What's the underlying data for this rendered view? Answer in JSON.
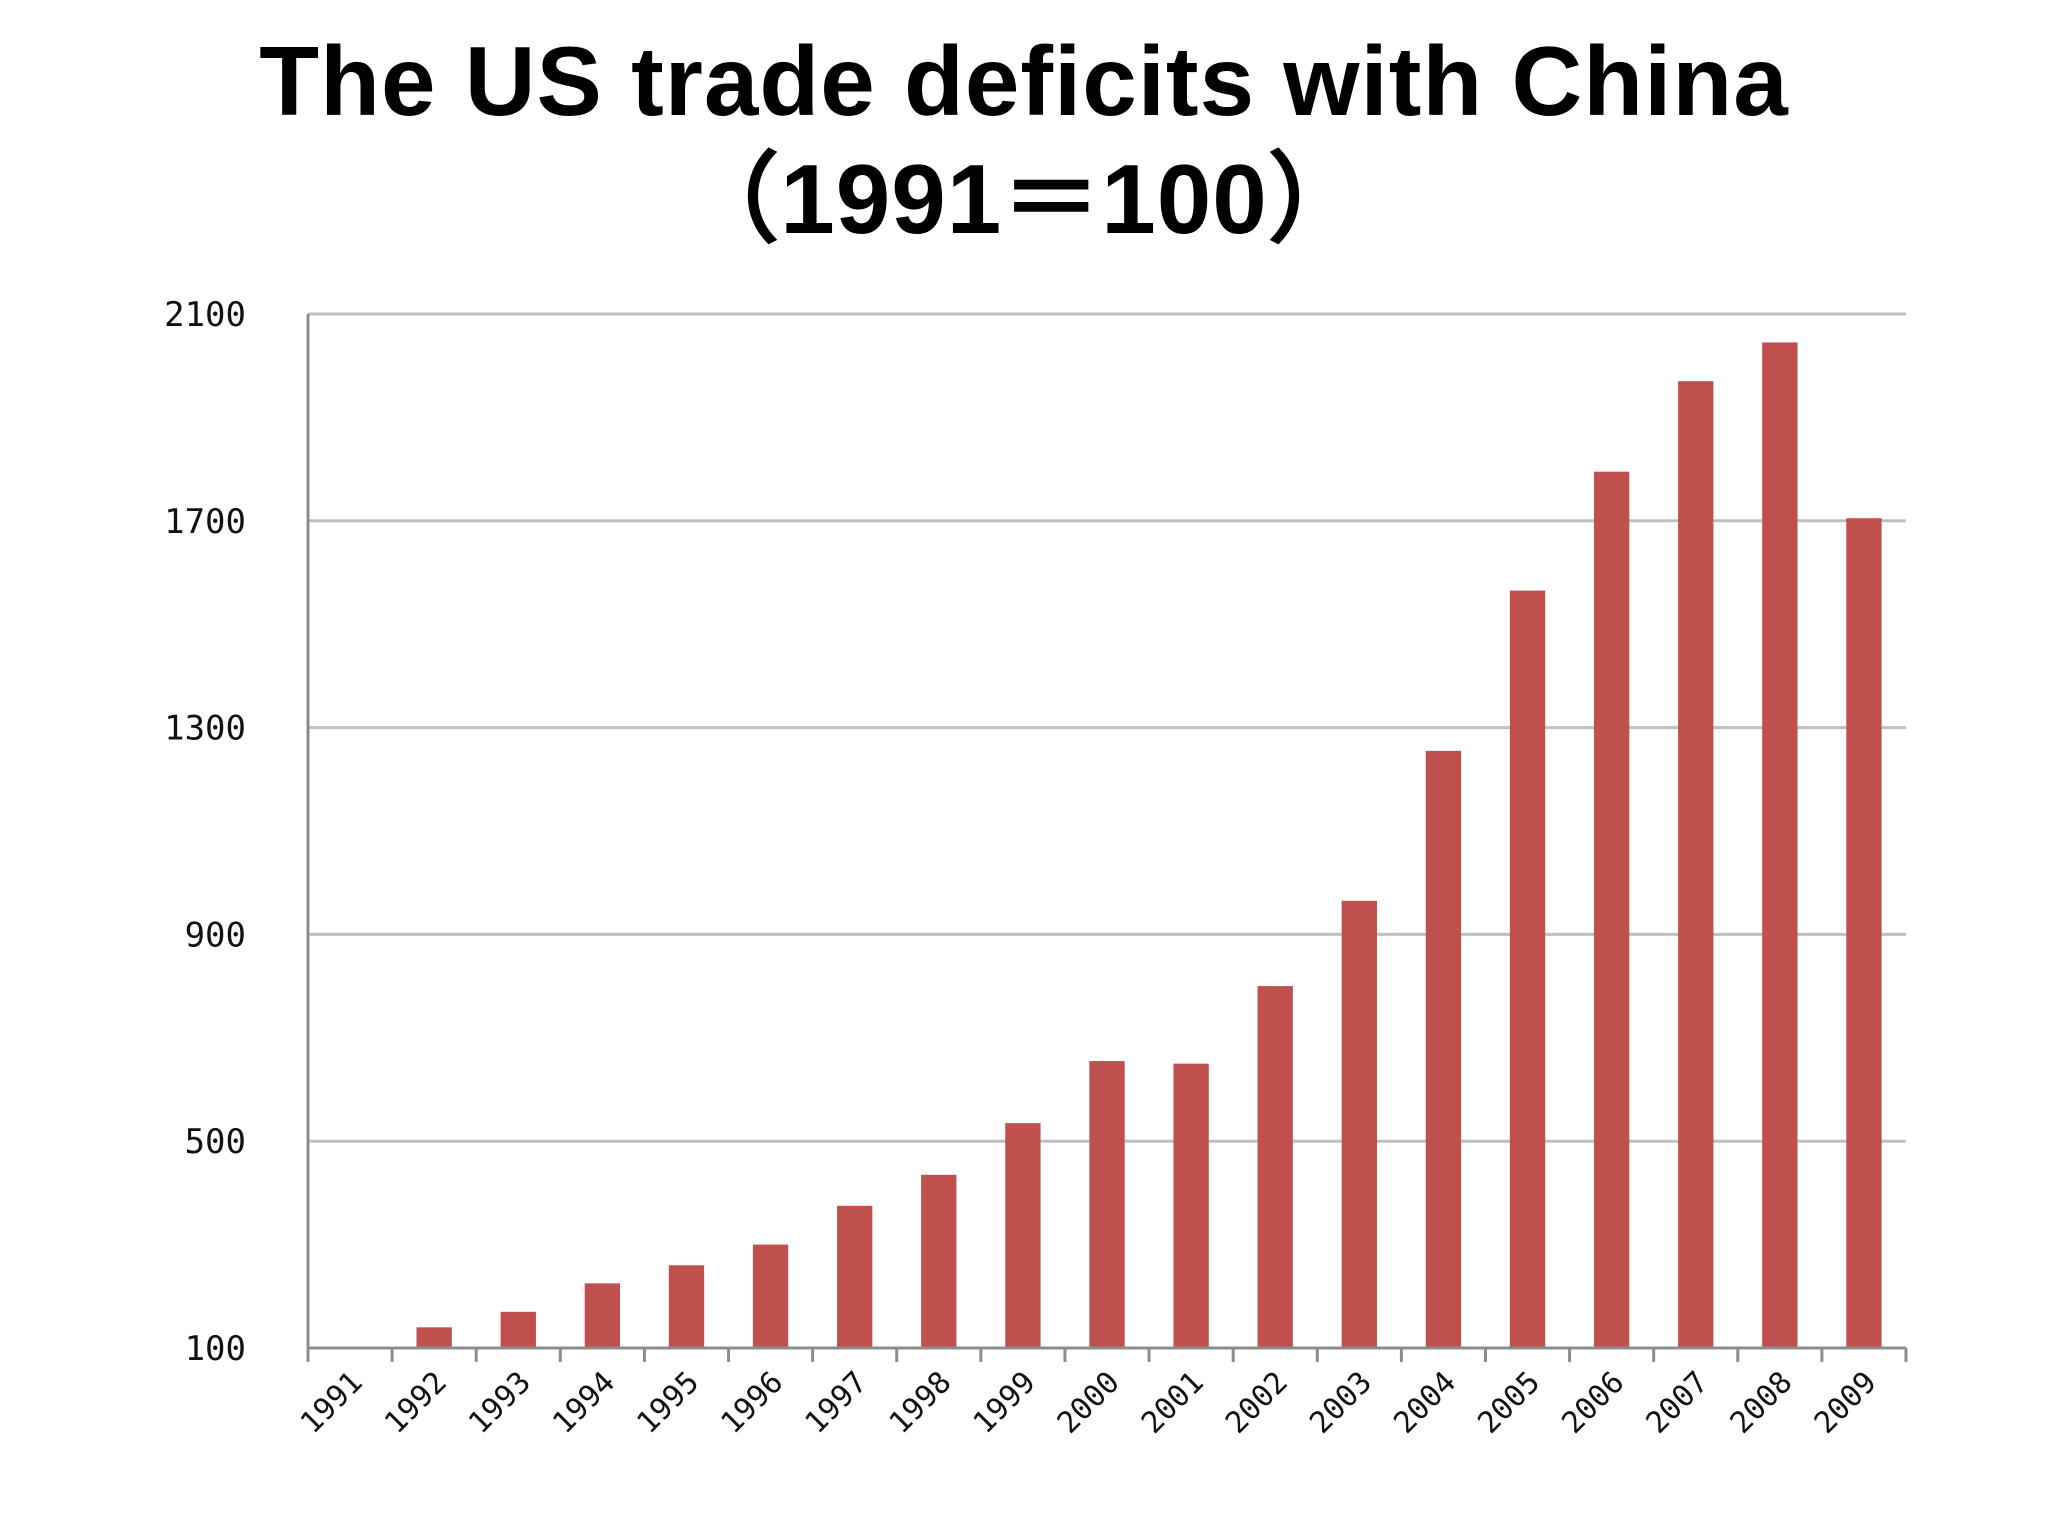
{
  "title": {
    "line1": "The US trade deficits with China",
    "line2": "（1991＝100）"
  },
  "colors": {
    "bar": "#c0504d",
    "grid": "#bfbfbf",
    "axis": "#8c8c8c",
    "text": "#000000"
  },
  "chart_data": {
    "type": "bar",
    "title": "The US trade deficits with China （1991＝100）",
    "xlabel": "",
    "ylabel": "",
    "categories": [
      "1991",
      "1992",
      "1993",
      "1994",
      "1995",
      "1996",
      "1997",
      "1998",
      "1999",
      "2000",
      "2001",
      "2002",
      "2003",
      "2004",
      "2005",
      "2006",
      "2007",
      "2008",
      "2009"
    ],
    "values": [
      100,
      140,
      170,
      225,
      260,
      300,
      375,
      435,
      535,
      655,
      650,
      800,
      965,
      1255,
      1565,
      1795,
      1970,
      2045,
      1705
    ],
    "yticks": [
      100,
      500,
      900,
      1300,
      1700,
      2100
    ],
    "ylim": [
      100,
      2100
    ],
    "grid": true,
    "legend": "none"
  }
}
